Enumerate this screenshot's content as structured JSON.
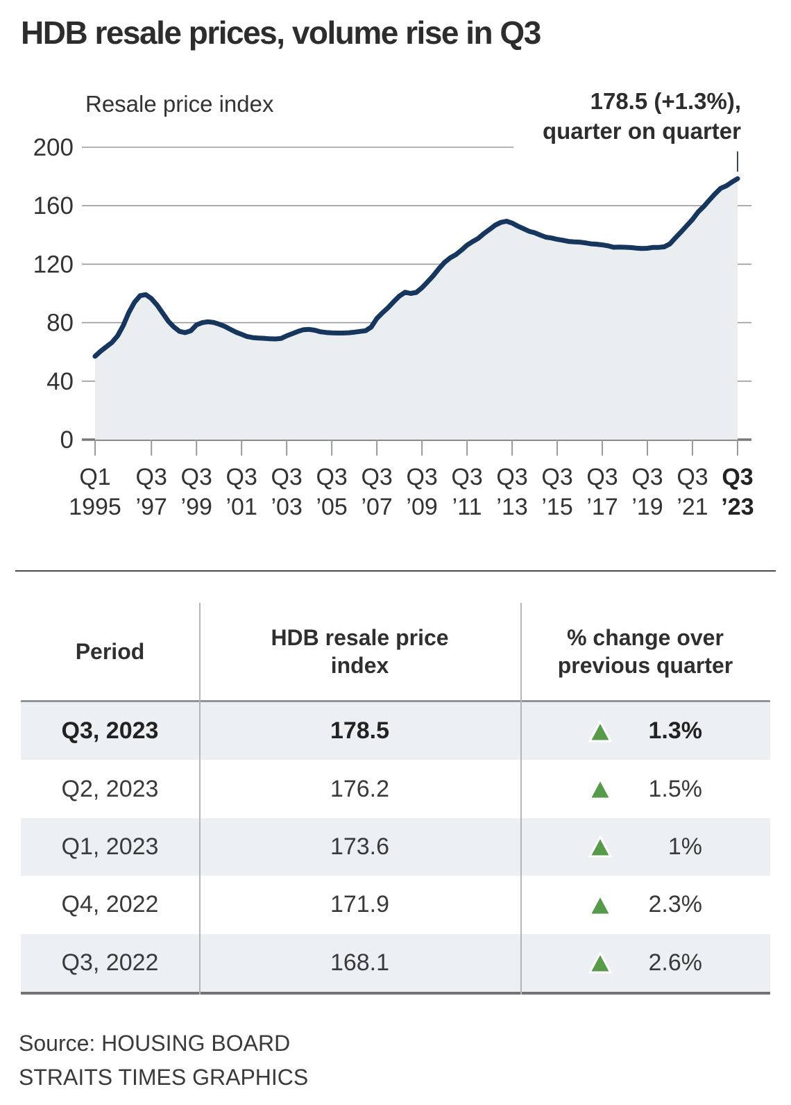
{
  "title": "HDB resale prices, volume rise in Q3",
  "chart": {
    "axis_label": "Resale price index",
    "annotation_line1": "178.5 (+1.3%),",
    "annotation_line2": "quarter on quarter"
  },
  "colors": {
    "line_navy": "#17365d",
    "area_fill": "#eaeef1",
    "gridline": "#97999b",
    "axis": "#77797c",
    "trend_green": "#569a4a",
    "leader": "#3f4650"
  },
  "chart_data": {
    "type": "area",
    "title": "Resale price index",
    "frequency": "quarterly",
    "x_start": "Q1 1995",
    "x_end": "Q3 2023",
    "ylim": [
      0,
      200
    ],
    "y_ticks": [
      0,
      40,
      80,
      120,
      160,
      200
    ],
    "grid": true,
    "annotation": "178.5 (+1.3%), quarter on quarter",
    "x_tick_labels": [
      {
        "line1": "Q1",
        "line2": "1995",
        "q": 0,
        "bold": false
      },
      {
        "line1": "Q3",
        "line2": "’97",
        "q": 10,
        "bold": false
      },
      {
        "line1": "Q3",
        "line2": "’99",
        "q": 18,
        "bold": false
      },
      {
        "line1": "Q3",
        "line2": "’01",
        "q": 26,
        "bold": false
      },
      {
        "line1": "Q3",
        "line2": "’03",
        "q": 34,
        "bold": false
      },
      {
        "line1": "Q3",
        "line2": "’05",
        "q": 42,
        "bold": false
      },
      {
        "line1": "Q3",
        "line2": "’07",
        "q": 50,
        "bold": false
      },
      {
        "line1": "Q3",
        "line2": "’09",
        "q": 58,
        "bold": false
      },
      {
        "line1": "Q3",
        "line2": "’11",
        "q": 66,
        "bold": false
      },
      {
        "line1": "Q3",
        "line2": "’13",
        "q": 74,
        "bold": false
      },
      {
        "line1": "Q3",
        "line2": "’15",
        "q": 82,
        "bold": false
      },
      {
        "line1": "Q3",
        "line2": "’17",
        "q": 90,
        "bold": false
      },
      {
        "line1": "Q3",
        "line2": "’19",
        "q": 98,
        "bold": false
      },
      {
        "line1": "Q3",
        "line2": "’21",
        "q": 106,
        "bold": false
      },
      {
        "line1": "Q3",
        "line2": "’23",
        "q": 114,
        "bold": true
      }
    ],
    "values": [
      57.0,
      60.5,
      63.5,
      66.5,
      71.0,
      78.0,
      87.0,
      94.0,
      98.5,
      99.2,
      96.5,
      92.0,
      86.5,
      81.0,
      77.0,
      74.0,
      73.2,
      74.5,
      78.5,
      80.0,
      80.6,
      80.2,
      79.0,
      77.5,
      75.5,
      73.5,
      72.0,
      70.5,
      69.8,
      69.5,
      69.3,
      69.0,
      68.9,
      69.2,
      71.0,
      72.5,
      74.0,
      75.2,
      75.4,
      74.8,
      73.8,
      73.3,
      73.0,
      72.9,
      72.9,
      73.1,
      73.5,
      74.0,
      74.5,
      77.0,
      82.9,
      86.8,
      90.3,
      94.4,
      98.2,
      100.8,
      100.0,
      100.7,
      103.9,
      107.9,
      112.1,
      116.9,
      121.2,
      124.3,
      126.5,
      129.6,
      133.0,
      135.5,
      137.7,
      141.0,
      143.8,
      146.7,
      148.6,
      149.4,
      148.1,
      146.1,
      144.3,
      142.5,
      141.5,
      139.9,
      138.5,
      137.9,
      137.0,
      136.4,
      135.6,
      135.3,
      135.1,
      134.6,
      133.9,
      133.7,
      133.2,
      132.6,
      131.6,
      131.7,
      131.6,
      131.4,
      131.0,
      130.8,
      130.9,
      131.5,
      131.5,
      131.9,
      133.9,
      138.1,
      142.2,
      146.4,
      150.6,
      155.7,
      159.5,
      163.9,
      168.1,
      171.9,
      173.6,
      176.2,
      178.5
    ]
  },
  "table": {
    "headers": [
      "Period",
      "HDB resale price index",
      "% change over previous quarter"
    ],
    "rows": [
      {
        "period": "Q3, 2023",
        "index": "178.5",
        "change": "1.3%",
        "bold": true
      },
      {
        "period": "Q2, 2023",
        "index": "176.2",
        "change": "1.5%",
        "bold": false
      },
      {
        "period": "Q1, 2023",
        "index": "173.6",
        "change": "1%",
        "bold": false
      },
      {
        "period": "Q4, 2022",
        "index": "171.9",
        "change": "2.3%",
        "bold": false
      },
      {
        "period": "Q3, 2022",
        "index": "168.1",
        "change": "2.6%",
        "bold": false
      }
    ]
  },
  "source_line1": "Source: HOUSING BOARD",
  "source_line2": "STRAITS TIMES GRAPHICS"
}
